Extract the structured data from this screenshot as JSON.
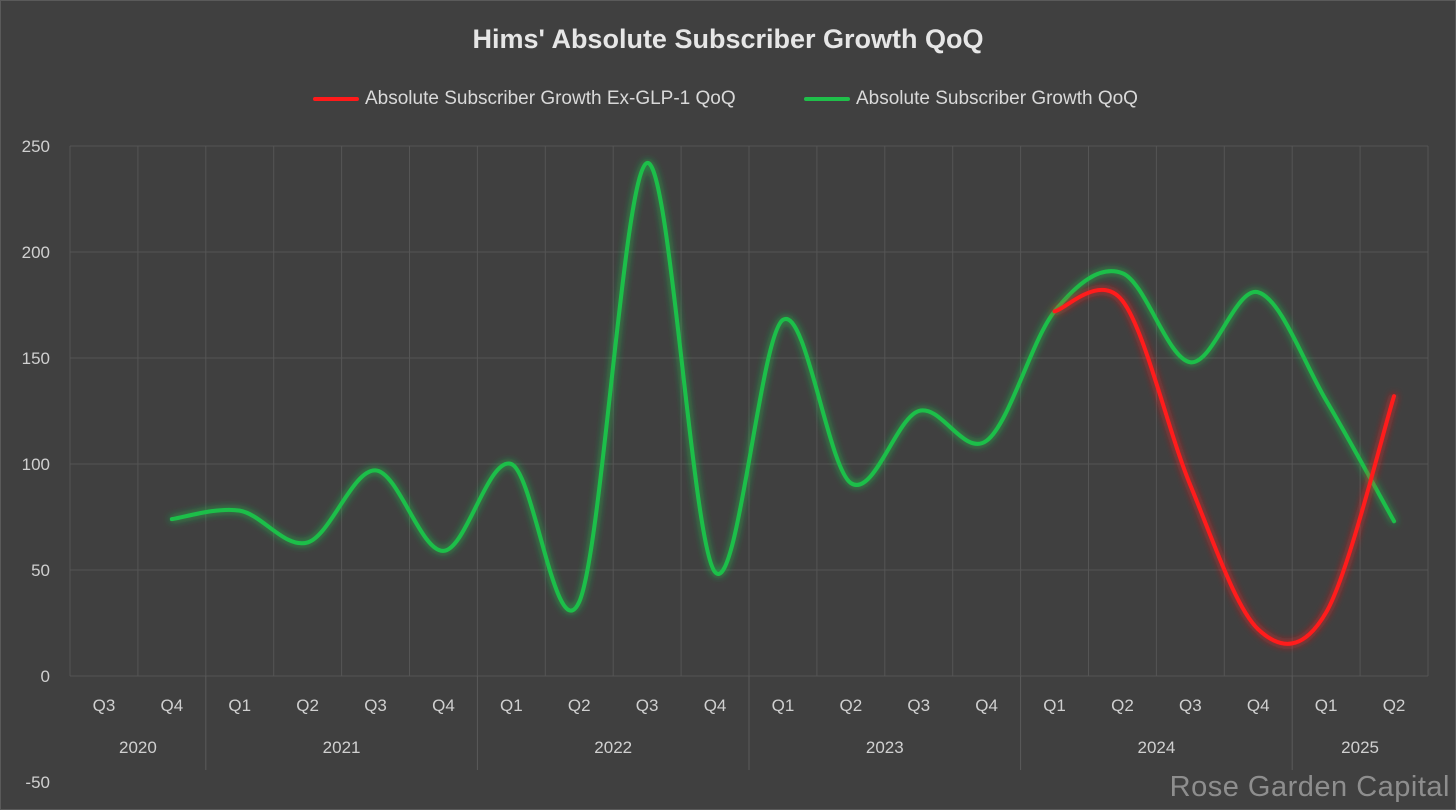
{
  "chart_data": {
    "type": "line",
    "title": "Hims' Absolute Subscriber Growth QoQ",
    "ylim": [
      -50,
      250
    ],
    "y_ticks": [
      -50,
      0,
      50,
      100,
      150,
      200,
      250
    ],
    "categories": [
      "Q3",
      "Q4",
      "Q1",
      "Q2",
      "Q3",
      "Q4",
      "Q1",
      "Q2",
      "Q3",
      "Q4",
      "Q1",
      "Q2",
      "Q3",
      "Q4",
      "Q1",
      "Q2",
      "Q3",
      "Q4",
      "Q1",
      "Q2"
    ],
    "years": [
      {
        "label": "2020",
        "start": 0,
        "end": 1
      },
      {
        "label": "2021",
        "start": 2,
        "end": 5
      },
      {
        "label": "2022",
        "start": 6,
        "end": 9
      },
      {
        "label": "2023",
        "start": 10,
        "end": 13
      },
      {
        "label": "2024",
        "start": 14,
        "end": 17
      },
      {
        "label": "2025",
        "start": 18,
        "end": 19
      }
    ],
    "grid": true,
    "legend_position": "top",
    "series": [
      {
        "name": "Absolute Subscriber Growth Ex-GLP-1 QoQ",
        "color": "#ff1a1a",
        "x": [
          14,
          15,
          16,
          17,
          18,
          19
        ],
        "values": [
          172,
          177,
          90,
          22,
          30,
          132
        ]
      },
      {
        "name": "Absolute Subscriber Growth QoQ",
        "color": "#1fbf4a",
        "x": [
          1,
          2,
          3,
          4,
          5,
          6,
          7,
          8,
          9,
          10,
          11,
          12,
          13,
          14,
          15,
          16,
          17,
          18,
          19
        ],
        "values": [
          74,
          78,
          63,
          97,
          59,
          100,
          35,
          242,
          49,
          168,
          91,
          125,
          111,
          172,
          190,
          148,
          181,
          130,
          73
        ]
      }
    ]
  },
  "watermark": "Rose Garden Capital"
}
